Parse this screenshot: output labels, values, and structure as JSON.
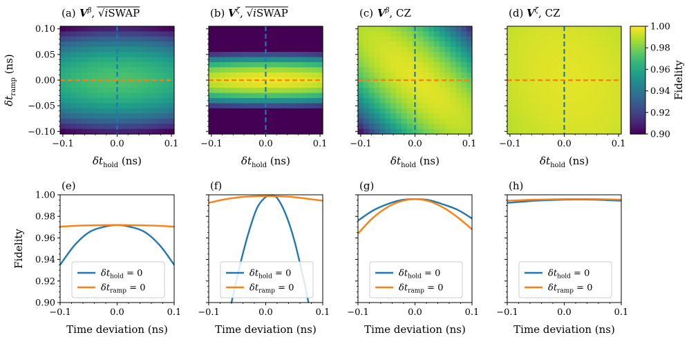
{
  "chart_data": {
    "type": "heatmap",
    "colormap": "viridis",
    "colorbar": {
      "label": "Fidelity",
      "range": [
        0.9,
        1.0
      ],
      "ticks": [
        "0.90",
        "0.92",
        "0.94",
        "0.96",
        "0.98",
        "1.00"
      ]
    },
    "heatmap_axes": {
      "xlabel": "δt_hold (ns)",
      "ylabel": "δt_ramp (ns)",
      "xlim": [
        -0.105,
        0.105
      ],
      "ylim": [
        -0.105,
        0.105
      ],
      "xticks": [
        -0.1,
        0.0,
        0.1
      ],
      "xtick_labels": [
        "−0.1",
        "0.0",
        "0.1"
      ],
      "yticks": [
        0.1,
        0.05,
        0.0,
        -0.05,
        -0.1
      ],
      "ytick_labels": [
        "0.10",
        "0.05",
        "0.00",
        "−0.05",
        "−0.10"
      ],
      "grid_cells": 21
    },
    "line_axes": {
      "xlabel": "Time deviation (ns)",
      "ylabel": "Fidelity",
      "xlim": [
        -0.1,
        0.1
      ],
      "ylim": [
        0.9,
        1.0
      ],
      "xticks": [
        -0.1,
        0.0,
        0.1
      ],
      "xtick_labels": [
        "−0.1",
        "0.0",
        "0.1"
      ],
      "yticks": [
        1.0,
        0.98,
        0.96,
        0.94,
        0.92,
        0.9
      ],
      "ytick_labels": [
        "1.00",
        "0.98",
        "0.96",
        "0.94",
        "0.92",
        "0.90"
      ],
      "legend": [
        "δt_hold = 0",
        "δt_ramp = 0"
      ],
      "legend_position": "lower-center"
    },
    "panels": [
      {
        "label": "(a)",
        "title_main": "V",
        "title_sup": "β",
        "title_rest": "√iSWAP",
        "title_kind": "sqrt",
        "model": {
          "F0": 0.9715,
          "a": 0.9,
          "b": 6.2,
          "c": 0,
          "shift_x": 0,
          "shift_y": 0
        },
        "line_label": "(e)",
        "series": [
          {
            "name": "δt_hold = 0",
            "x": [
              -0.1,
              -0.075,
              -0.05,
              -0.025,
              0,
              0.025,
              0.05,
              0.075,
              0.1
            ],
            "y": [
              0.935,
              0.953,
              0.965,
              0.97,
              0.972,
              0.97,
              0.965,
              0.953,
              0.935
            ]
          },
          {
            "name": "δt_ramp = 0",
            "x": [
              -0.1,
              -0.075,
              -0.05,
              -0.025,
              0,
              0.025,
              0.05,
              0.075,
              0.1
            ],
            "y": [
              0.9705,
              0.9712,
              0.9716,
              0.9718,
              0.972,
              0.9718,
              0.9716,
              0.9712,
              0.9705
            ]
          }
        ]
      },
      {
        "label": "(b)",
        "title_main": "V",
        "title_sup": "ζ",
        "title_rest": "√iSWAP",
        "title_kind": "sqrt",
        "model": {
          "F0": 0.9985,
          "a": 0.6,
          "b": 30.0,
          "c": 0,
          "shift_x": 0.005,
          "shift_y": 0
        },
        "line_label": "(f)",
        "series": [
          {
            "name": "δt_hold = 0",
            "x": [
              -0.06,
              -0.045,
              -0.03,
              -0.015,
              0,
              0.01,
              0.02,
              0.035,
              0.05,
              0.065,
              0.075
            ],
            "y": [
              0.9,
              0.935,
              0.965,
              0.988,
              0.998,
              0.999,
              0.997,
              0.982,
              0.958,
              0.925,
              0.9
            ]
          },
          {
            "name": "δt_ramp = 0",
            "x": [
              -0.1,
              -0.075,
              -0.05,
              -0.025,
              0,
              0.025,
              0.05,
              0.075,
              0.1
            ],
            "y": [
              0.9925,
              0.9955,
              0.9975,
              0.9985,
              0.9988,
              0.9986,
              0.9978,
              0.9962,
              0.9945
            ]
          }
        ]
      },
      {
        "label": "(c)",
        "title_main": "V",
        "title_sup": "β",
        "title_rest": "CZ",
        "title_kind": "plain",
        "model": {
          "F0": 0.996,
          "a": 2.3,
          "b": 2.3,
          "c": 3.9,
          "shift_x": 0.005,
          "shift_y": 0
        },
        "line_label": "(g)",
        "series": [
          {
            "name": "δt_hold = 0",
            "x": [
              -0.1,
              -0.075,
              -0.05,
              -0.025,
              0,
              0.025,
              0.05,
              0.075,
              0.1
            ],
            "y": [
              0.976,
              0.985,
              0.991,
              0.995,
              0.996,
              0.995,
              0.991,
              0.986,
              0.978
            ]
          },
          {
            "name": "δt_ramp = 0",
            "x": [
              -0.1,
              -0.075,
              -0.05,
              -0.025,
              0,
              0.025,
              0.05,
              0.075,
              0.1
            ],
            "y": [
              0.964,
              0.978,
              0.988,
              0.994,
              0.996,
              0.994,
              0.988,
              0.979,
              0.968
            ]
          }
        ]
      },
      {
        "label": "(d)",
        "title_main": "V",
        "title_sup": "ζ",
        "title_rest": "CZ",
        "title_kind": "plain",
        "model": {
          "F0": 0.996,
          "a": 0.3,
          "b": 0.2,
          "c": 0.1,
          "shift_x": 0.01,
          "shift_y": 0
        },
        "line_label": "(h)",
        "series": [
          {
            "name": "δt_hold = 0",
            "x": [
              -0.1,
              -0.05,
              0,
              0.05,
              0.1
            ],
            "y": [
              0.9925,
              0.9945,
              0.9955,
              0.9955,
              0.9945
            ]
          },
          {
            "name": "δt_ramp = 0",
            "x": [
              -0.1,
              -0.05,
              0,
              0.05,
              0.1
            ],
            "y": [
              0.9945,
              0.9955,
              0.996,
              0.996,
              0.9955
            ]
          }
        ]
      }
    ]
  }
}
